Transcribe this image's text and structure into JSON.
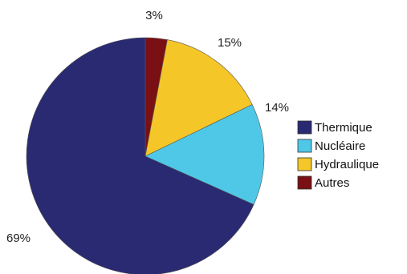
{
  "chart_data": {
    "type": "pie",
    "categories": [
      "Thermique",
      "Nucléaire",
      "Hydraulique",
      "Autres"
    ],
    "values": [
      69,
      14,
      15,
      3
    ],
    "labels": [
      "69%",
      "14%",
      "15%",
      "3%"
    ],
    "colors": [
      "#2a2a72",
      "#4ec8e6",
      "#f4c628",
      "#7a1014"
    ],
    "title": "",
    "legend_position": "right",
    "start_angle_deg": 90,
    "direction": "clockwise",
    "slice_order": [
      3,
      2,
      1,
      0
    ]
  }
}
